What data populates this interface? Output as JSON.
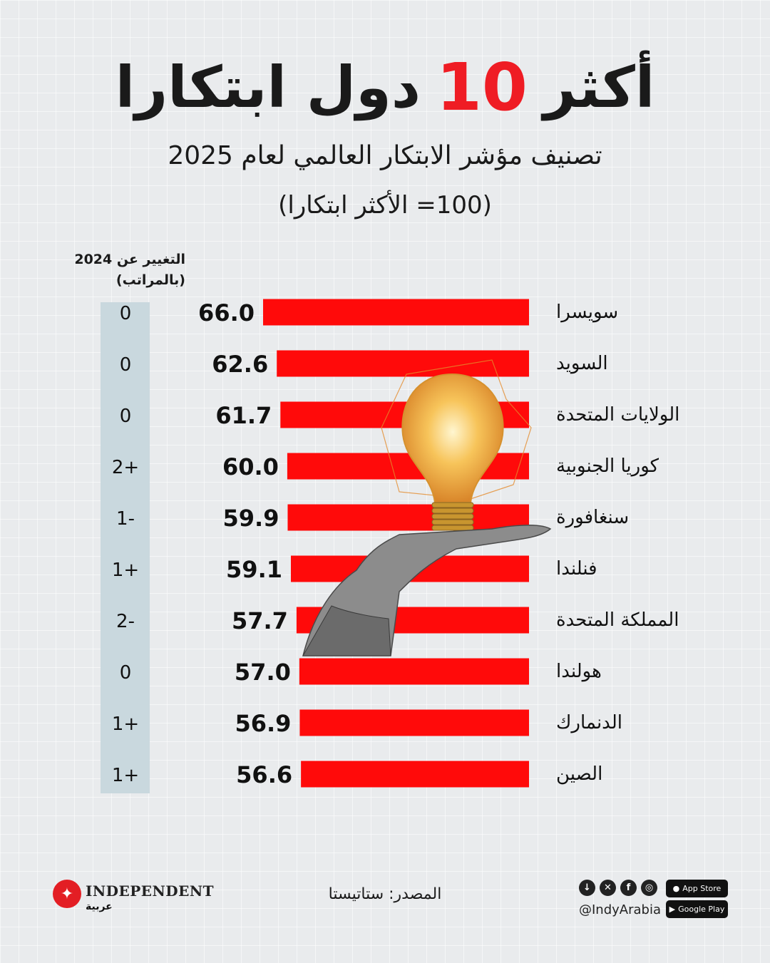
{
  "title": {
    "before": "أكثر",
    "number": "10",
    "after": "دول ابتكارا"
  },
  "subtitle": "تصنيف مؤشر الابتكار العالمي لعام 2025",
  "subtitle2": "(100= الأكثر ابتكارا)",
  "change_header": {
    "line1": "التغيير عن 2024",
    "line2": "(بالمراتب)"
  },
  "chart_data": {
    "type": "bar",
    "orientation": "horizontal",
    "title": "تصنيف مؤشر الابتكار العالمي لعام 2025",
    "categories": [
      "سويسرا",
      "السويد",
      "الولايات المتحدة",
      "كوريا الجنوبية",
      "سنغافورة",
      "فنلندا",
      "المملكة المتحدة",
      "هولندا",
      "الدنمارك",
      "الصين"
    ],
    "values": [
      66.0,
      62.6,
      61.7,
      60.0,
      59.9,
      59.1,
      57.7,
      57.0,
      56.9,
      56.6
    ],
    "value_labels": [
      "66.0",
      "62.6",
      "61.7",
      "60.0",
      "59.9",
      "59.1",
      "57.7",
      "57.0",
      "56.9",
      "56.6"
    ],
    "rank_change_labels": [
      "0",
      "0",
      "0",
      "2+",
      "1-",
      "1+",
      "2-",
      "0",
      "1+",
      "1+"
    ],
    "bar_color": "#ff0a0a"
  },
  "footer": {
    "logo_name": "INDEPENDENT",
    "logo_sub": "عربية",
    "source": "المصدر: ستاتيستا",
    "handle": "@IndyArabia",
    "app_store": "App Store",
    "google_play": "Google Play"
  },
  "colors": {
    "accent": "#ef1c24",
    "change_column": "#c9d8de"
  }
}
